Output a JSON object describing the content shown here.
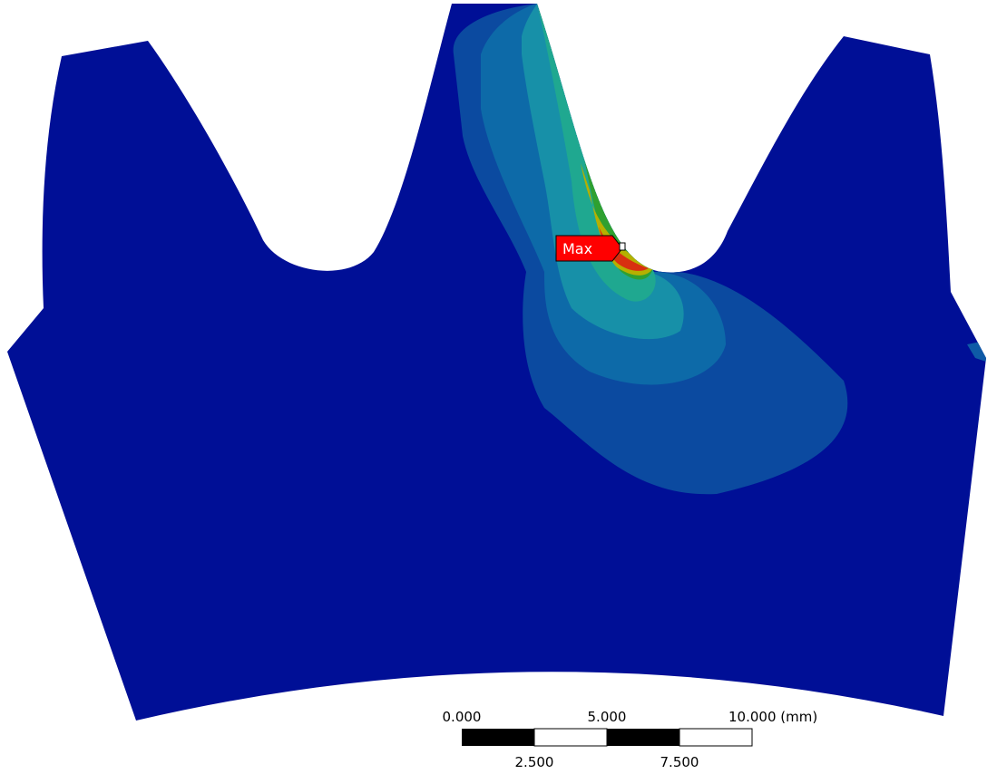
{
  "probe": {
    "label": "Max"
  },
  "scale_bar": {
    "top_labels": [
      "0.000",
      "5.000",
      "10.000 (mm)"
    ],
    "bottom_labels": [
      "2.500",
      "7.500"
    ]
  }
}
